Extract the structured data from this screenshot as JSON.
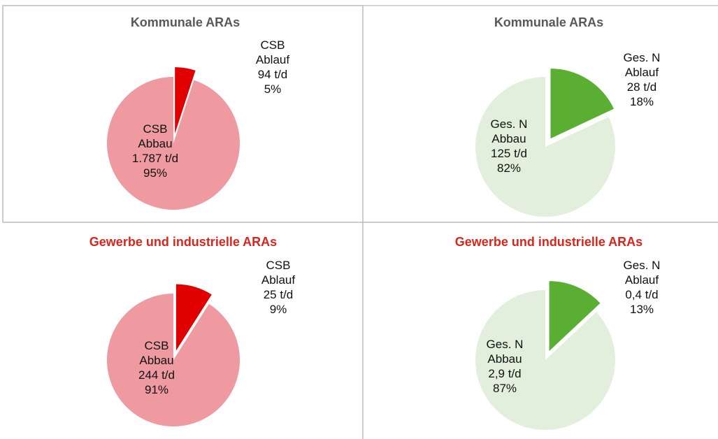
{
  "chart_data": [
    {
      "type": "pie",
      "title": "Kommunale ARAs",
      "categories": [
        [
          "CSB",
          "Ablauf"
        ],
        [
          "CSB",
          "Abbau"
        ]
      ],
      "amounts": [
        "94 t/d",
        "1.787 t/d"
      ],
      "values": [
        5,
        95
      ],
      "value_labels": [
        "5%",
        "95%"
      ],
      "colors": [
        "#e00000",
        "#ee9aa0"
      ],
      "explode": [
        true,
        false
      ]
    },
    {
      "type": "pie",
      "title": "Kommunale ARAs",
      "categories": [
        [
          "Ges. N",
          "Ablauf"
        ],
        [
          "Ges. N",
          "Abbau"
        ]
      ],
      "amounts": [
        "28 t/d",
        "125 t/d"
      ],
      "values": [
        18,
        82
      ],
      "value_labels": [
        "18%",
        "82%"
      ],
      "colors": [
        "#5aaf32",
        "#e2efdc"
      ],
      "explode": [
        true,
        false
      ]
    },
    {
      "type": "pie",
      "title": "Gewerbe und industrielle ARAs",
      "categories": [
        [
          "CSB",
          "Ablauf"
        ],
        [
          "CSB",
          "Abbau"
        ]
      ],
      "amounts": [
        "25 t/d",
        "244 t/d"
      ],
      "values": [
        9,
        91
      ],
      "value_labels": [
        "9%",
        "91%"
      ],
      "colors": [
        "#e00000",
        "#ee9aa0"
      ],
      "explode": [
        true,
        false
      ]
    },
    {
      "type": "pie",
      "title": "Gewerbe und industrielle ARAs",
      "categories": [
        [
          "Ges. N",
          "Ablauf"
        ],
        [
          "Ges. N",
          "Abbau"
        ]
      ],
      "amounts": [
        "0,4 t/d",
        "2,9 t/d"
      ],
      "values": [
        13,
        87
      ],
      "value_labels": [
        "13%",
        "87%"
      ],
      "colors": [
        "#5aaf32",
        "#e2efdc"
      ],
      "explode": [
        true,
        false
      ]
    }
  ]
}
